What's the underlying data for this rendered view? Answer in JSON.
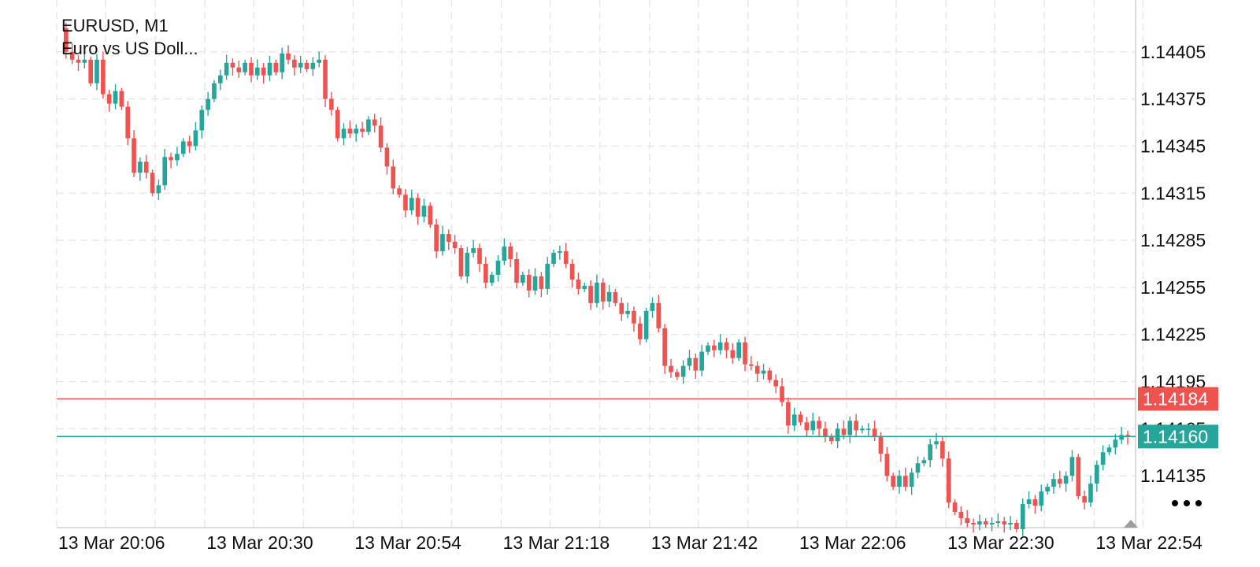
{
  "chart_data": {
    "type": "candlestick",
    "symbol": "EURUSD, M1",
    "description": "Euro vs US Doll...",
    "colors": {
      "up": "#26a69a",
      "down": "#ef5350",
      "bid_line": "#ef5350",
      "ask_line": "#26a69a",
      "wick": "#333333"
    },
    "ylim": [
      1.14102,
      1.14438
    ],
    "y_ticks": [
      "1.14405",
      "1.14375",
      "1.14345",
      "1.14315",
      "1.14285",
      "1.14255",
      "1.14225",
      "1.14195",
      "1.14165",
      "1.14135"
    ],
    "x_ticks": [
      "13 Mar 20:06",
      "13 Mar 20:30",
      "13 Mar 20:54",
      "13 Mar 21:18",
      "13 Mar 21:42",
      "13 Mar 22:06",
      "13 Mar 22:30",
      "13 Mar 22:54"
    ],
    "bid_price": "1.14184",
    "ask_price": "1.14160",
    "bars": [
      1.1442,
      1.14405,
      1.144,
      1.14398,
      1.144,
      1.14385,
      1.144,
      1.14378,
      1.14372,
      1.1438,
      1.1437,
      1.1435,
      1.14328,
      1.14335,
      1.14328,
      1.14315,
      1.1432,
      1.14338,
      1.14336,
      1.1434,
      1.14348,
      1.14345,
      1.14355,
      1.14368,
      1.14375,
      1.14385,
      1.1439,
      1.14398,
      1.14395,
      1.14392,
      1.14398,
      1.1439,
      1.14395,
      1.1439,
      1.14398,
      1.14392,
      1.14404,
      1.144,
      1.14395,
      1.14398,
      1.14394,
      1.14398,
      1.144,
      1.14375,
      1.14368,
      1.1435,
      1.14356,
      1.14353,
      1.14356,
      1.14354,
      1.14362,
      1.14358,
      1.14344,
      1.14332,
      1.14318,
      1.14314,
      1.14304,
      1.14312,
      1.143,
      1.14307,
      1.14295,
      1.14278,
      1.14289,
      1.14284,
      1.1428,
      1.14262,
      1.14277,
      1.1428,
      1.1427,
      1.14258,
      1.14263,
      1.14272,
      1.14281,
      1.14273,
      1.14258,
      1.14263,
      1.14253,
      1.14262,
      1.14254,
      1.1427,
      1.14277,
      1.14278,
      1.1427,
      1.1426,
      1.14254,
      1.14256,
      1.14245,
      1.14258,
      1.14246,
      1.14252,
      1.14245,
      1.14238,
      1.1424,
      1.14232,
      1.14222,
      1.1424,
      1.14245,
      1.14229,
      1.14205,
      1.14201,
      1.14198,
      1.14205,
      1.1421,
      1.14202,
      1.14214,
      1.14218,
      1.14215,
      1.1422,
      1.14215,
      1.1421,
      1.1422,
      1.14206,
      1.14205,
      1.142,
      1.14202,
      1.14196,
      1.14192,
      1.14182,
      1.14167,
      1.14174,
      1.14169,
      1.14164,
      1.1417,
      1.14165,
      1.1416,
      1.14157,
      1.14165,
      1.14161,
      1.1417,
      1.14164,
      1.14165,
      1.14165,
      1.1416,
      1.14149,
      1.14135,
      1.14128,
      1.14135,
      1.14128,
      1.14137,
      1.14143,
      1.14145,
      1.14155,
      1.14157,
      1.14146,
      1.14118,
      1.14112,
      1.14108,
      1.14105,
      1.14104,
      1.14106,
      1.14104,
      1.14105,
      1.14106,
      1.14104,
      1.14105,
      1.14101,
      1.14117,
      1.1412,
      1.14116,
      1.14125,
      1.14128,
      1.14133,
      1.1413,
      1.14135,
      1.14147,
      1.14122,
      1.14118,
      1.1413,
      1.14142,
      1.1415,
      1.14153,
      1.14158,
      1.14161,
      1.1416
    ]
  }
}
